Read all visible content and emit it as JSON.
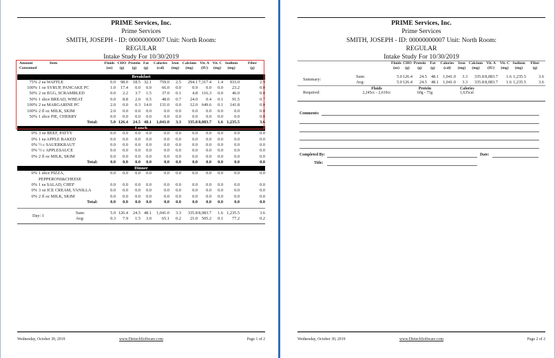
{
  "header": {
    "company": "PRIME Services, Inc.",
    "facility": "Prime Services",
    "patient": "SMITH, JOSEPH - ID: 00000000007 Unit: North Room:",
    "diet": "REGULAR",
    "study": "Intake Study For 10/30/2019"
  },
  "columns": [
    {
      "h1": "Fluids",
      "h2": "(oz)"
    },
    {
      "h1": "CHO",
      "h2": "(g)"
    },
    {
      "h1": "Protein",
      "h2": "(g)"
    },
    {
      "h1": "Fat",
      "h2": "(g)"
    },
    {
      "h1": "Calories",
      "h2": "(cal)"
    },
    {
      "h1": "Iron",
      "h2": "(mg)"
    },
    {
      "h1": "Calcium",
      "h2": "(mg)"
    },
    {
      "h1": "Vit. A",
      "h2": "(IU)"
    },
    {
      "h1": "Vit. C",
      "h2": "(mg)"
    },
    {
      "h1": "Sodium",
      "h2": "(mg)"
    },
    {
      "h1": "Fiber",
      "h2": "(g)"
    }
  ],
  "page1": {
    "amount_header": "Amount Consumed",
    "item_header": "Item",
    "total_label": "Total:",
    "meals": [
      {
        "name": "Breakfast",
        "items": [
          {
            "amount": "75%",
            "item": "2 ea WAFFLE",
            "values": [
              "0.0",
              "98.0",
              "18.5",
              "32.1",
              "759.0",
              "2.5",
              "294.1",
              "7,317.4",
              "1.4",
              "933.0",
              "2.9"
            ]
          },
          {
            "amount": "100%",
            "item": "1 oz SYRUP, PANCAKE PC",
            "values": [
              "1.0",
              "17.4",
              "0.0",
              "0.0",
              "66.0",
              "0.0",
              "0.9",
              "0.0",
              "0.0",
              "23.2",
              "0.0"
            ]
          },
          {
            "amount": "50%",
            "item": "2 oz EGG, SCRAMBLED",
            "values": [
              "0.0",
              "2.2",
              "3.7",
              "1.5",
              "37.0",
              "0.1",
              "4.8",
              "116.3",
              "0.0",
              "46.0",
              "0.0"
            ]
          },
          {
            "amount": "50%",
            "item": "1 slice BREAD, WHEAT",
            "values": [
              "0.0",
              "8.8",
              "2.0",
              "0.5",
              "48.0",
              "0.7",
              "24.0",
              "0.4",
              "0.1",
              "91.5",
              "0.7"
            ]
          },
          {
            "amount": "100%",
            "item": "2 ea MARGARINE PC",
            "values": [
              "2.0",
              "0.0",
              "0.3",
              "14.0",
              "131.0",
              "0.0",
              "12.0",
              "649.6",
              "0.1",
              "141.8",
              "0.0"
            ]
          },
          {
            "amount": "100%",
            "item": "2 fl oz MILK, SKIM",
            "values": [
              "2.0",
              "0.0",
              "0.0",
              "0.0",
              "0.0",
              "0.0",
              "0.0",
              "0.0",
              "0.0",
              "0.0",
              "0.0"
            ]
          },
          {
            "amount": "50%",
            "item": "1 slice PIE, CHERRY",
            "values": [
              "0.0",
              "0.0",
              "0.0",
              "0.0",
              "0.0",
              "0.0",
              "0.0",
              "0.0",
              "0.0",
              "0.0",
              "0.0"
            ]
          }
        ],
        "total": [
          "5.0",
          "126.4",
          "24.5",
          "48.1",
          "1,041.0",
          "3.3",
          "335.8",
          "8,083.7",
          "1.6",
          "1,235.5",
          "3.6"
        ]
      },
      {
        "name": "Lunch",
        "items": [
          {
            "amount": "0%",
            "item": "3 oz BEEF, PATTY",
            "values": [
              "0.0",
              "0.0",
              "0.0",
              "0.0",
              "0.0",
              "0.0",
              "0.0",
              "0.0",
              "0.0",
              "0.0",
              "0.0"
            ]
          },
          {
            "amount": "0%",
            "item": "1 ea APPLE BAKED",
            "values": [
              "0.0",
              "0.0",
              "0.0",
              "0.0",
              "0.0",
              "0.0",
              "0.0",
              "0.0",
              "0.0",
              "0.0",
              "0.0"
            ]
          },
          {
            "amount": "0%",
            "item": "½ c SAUERKRAUT",
            "values": [
              "0.0",
              "0.0",
              "0.0",
              "0.0",
              "0.0",
              "0.0",
              "0.0",
              "0.0",
              "0.0",
              "0.0",
              "0.0"
            ]
          },
          {
            "amount": "0%",
            "item": "½ c APPLESAUCE",
            "values": [
              "0.0",
              "0.0",
              "0.0",
              "0.0",
              "0.0",
              "0.0",
              "0.0",
              "0.0",
              "0.0",
              "0.0",
              "0.0"
            ]
          },
          {
            "amount": "0%",
            "item": "2 fl oz MILK, SKIM",
            "values": [
              "0.0",
              "0.0",
              "0.0",
              "0.0",
              "0.0",
              "0.0",
              "0.0",
              "0.0",
              "0.0",
              "0.0",
              "0.0"
            ]
          }
        ],
        "total": [
          "0.0",
          "0.0",
          "0.0",
          "0.0",
          "0.0",
          "0.0",
          "0.0",
          "0.0",
          "0.0",
          "0.0",
          "0.0"
        ]
      },
      {
        "name": "Dinner",
        "items": [
          {
            "amount": "0%",
            "item": "1 slice PIZZA, PEPPERONI&CHEESE",
            "values": [
              "0.0",
              "0.0",
              "0.0",
              "0.0",
              "0.0",
              "0.0",
              "0.0",
              "0.0",
              "0.0",
              "0.0",
              "0.0"
            ]
          },
          {
            "amount": "0%",
            "item": "1 ea SALAD, CHEF",
            "values": [
              "0.0",
              "0.0",
              "0.0",
              "0.0",
              "0.0",
              "0.0",
              "0.0",
              "0.0",
              "0.0",
              "0.0",
              "0.0"
            ]
          },
          {
            "amount": "0%",
            "item": "3 oz ICE CREAM, VANILLA",
            "values": [
              "0.0",
              "0.0",
              "0.0",
              "0.0",
              "0.0",
              "0.0",
              "0.0",
              "0.0",
              "0.0",
              "0.0",
              "0.0"
            ]
          },
          {
            "amount": "0%",
            "item": "2 fl oz MILK, SKIM",
            "values": [
              "0.0",
              "0.0",
              "0.0",
              "0.0",
              "0.0",
              "0.0",
              "0.0",
              "0.0",
              "0.0",
              "0.0",
              "0.0"
            ]
          }
        ],
        "total": [
          "0.0",
          "0.0",
          "0.0",
          "0.0",
          "0.0",
          "0.0",
          "0.0",
          "0.0",
          "0.0",
          "0.0",
          "0.0"
        ]
      }
    ],
    "day": {
      "label": "Day: 1",
      "sum_label": "Sum:",
      "sum": [
        "5.0",
        "126.4",
        "24.5",
        "48.1",
        "1,041.0",
        "3.3",
        "335.8",
        "8,083.7",
        "1.6",
        "1,235.5",
        "3.6"
      ],
      "avg_label": "Avg:",
      "avg": [
        "0.3",
        "7.9",
        "1.5",
        "3.0",
        "65.1",
        "0.2",
        "21.0",
        "505.2",
        "0.1",
        "77.2",
        "0.2"
      ]
    },
    "footer": {
      "date": "Wednesday, October 30, 2019",
      "url": "www.DietechSoftware.com",
      "page": "Page 1 of 2"
    }
  },
  "page2": {
    "summary": {
      "label": "Summary:",
      "sum_label": "Sum:",
      "sum": [
        "5.0",
        "126.4",
        "24.5",
        "48.1",
        "1,041.0",
        "3.3",
        "335.8",
        "8,083.7",
        "1.6",
        "1,235.5",
        "3.6"
      ],
      "avg_label": "Avg:",
      "avg": [
        "5.0",
        "126.4",
        "24.5",
        "48.1",
        "1,041.0",
        "3.3",
        "335.8",
        "8,083.7",
        "1.6",
        "1,235.5",
        "3.6"
      ]
    },
    "required": {
      "label": "Required:",
      "fluids_label": "Fluids",
      "fluids": "2,245cc - 2,619cc",
      "protein_label": "Protein",
      "protein": "60g - 75g",
      "calories_label": "Calories",
      "calories": "1,635cal"
    },
    "form": {
      "comments": "Comments:",
      "completed_by": "Completed By:",
      "date": "Date:",
      "title": "Title:"
    },
    "footer": {
      "date": "Wednesday, October 30, 2019",
      "url": "www.DietechSoftware.com",
      "page": "Page 2 of 2"
    }
  },
  "colors": {
    "divider": "#2f6fb9",
    "highlight": "#e23b3b",
    "meal_bar": "#000000"
  }
}
